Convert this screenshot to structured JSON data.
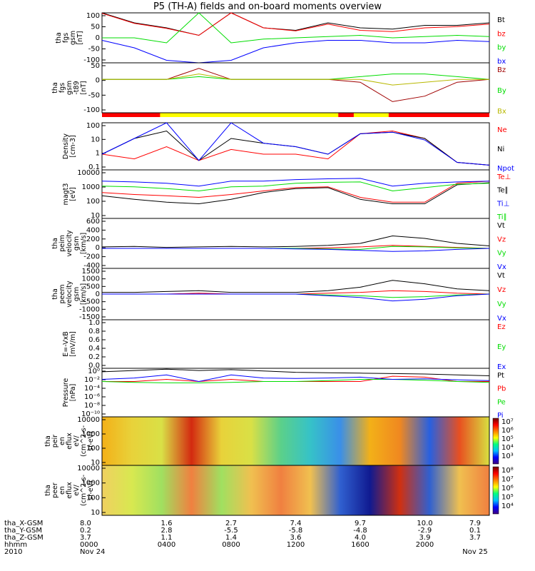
{
  "title": "P5 (TH-A) fields and on-board moments overview",
  "bar_colors": {
    "red": "#ff0000",
    "yellow": "#ffff00",
    "black": "#000000",
    "blue": "#0000ff",
    "green": "#00dd00",
    "darkred": "#a00000",
    "darkyellow": "#b8b800"
  },
  "chart_data": [
    {
      "type": "line",
      "id": "fgs",
      "ylabel": [
        "tha",
        "fgs",
        "gsm",
        "[nT]"
      ],
      "yticks": [
        "100",
        "50",
        "0",
        "-50",
        "-100"
      ],
      "ylim": [
        -100,
        100
      ],
      "series": [
        {
          "name": "Bt",
          "color": "#000000",
          "values": [
            100,
            60,
            40,
            10,
            100,
            40,
            30,
            60,
            40,
            35,
            50,
            50,
            60
          ]
        },
        {
          "name": "bz",
          "color": "#ff0000",
          "values": [
            98,
            58,
            38,
            10,
            100,
            40,
            28,
            55,
            30,
            25,
            40,
            45,
            55
          ]
        },
        {
          "name": "by",
          "color": "#00dd00",
          "values": [
            0,
            0,
            -20,
            100,
            -20,
            -5,
            0,
            5,
            10,
            0,
            5,
            10,
            5
          ]
        },
        {
          "name": "bx",
          "color": "#0000ff",
          "values": [
            -10,
            -40,
            -90,
            -100,
            -90,
            -40,
            -20,
            -10,
            -10,
            -20,
            -20,
            -10,
            -15
          ]
        }
      ]
    },
    {
      "type": "line",
      "id": "fgs-pos",
      "ylabel": [
        "tha",
        "fgs",
        "gsm",
        "-t89",
        "[nT]"
      ],
      "yticks": [
        "50",
        "0",
        "-50",
        "-100"
      ],
      "ylim": [
        -120,
        60
      ],
      "series": [
        {
          "name": "Bz",
          "color": "#a00000",
          "values": [
            0,
            0,
            0,
            40,
            0,
            0,
            0,
            0,
            -10,
            -80,
            -60,
            -10,
            0
          ]
        },
        {
          "name": "By",
          "color": "#00dd00",
          "values": [
            0,
            0,
            0,
            10,
            0,
            0,
            0,
            0,
            10,
            20,
            20,
            10,
            0
          ]
        },
        {
          "name": "Bx",
          "color": "#b8b800",
          "values": [
            0,
            0,
            0,
            20,
            0,
            0,
            0,
            0,
            0,
            -20,
            -10,
            0,
            0
          ]
        }
      ]
    },
    {
      "type": "line",
      "id": "density",
      "ylabel": [
        "Density",
        "[cm-3]"
      ],
      "yticks": [
        "100",
        "10",
        "1",
        "0.1"
      ],
      "ylim": [
        0.1,
        100
      ],
      "log": true,
      "series": [
        {
          "name": "Ne",
          "color": "#ff0000",
          "values": [
            1,
            0.5,
            3,
            0.4,
            2,
            1,
            1,
            0.5,
            20,
            30,
            10,
            0.3,
            0.2
          ]
        },
        {
          "name": "Ni",
          "color": "#000000",
          "values": [
            1,
            10,
            30,
            0.4,
            10,
            5,
            3,
            1,
            20,
            25,
            10,
            0.3,
            0.2
          ]
        },
        {
          "name": "Npot",
          "color": "#0000ff",
          "values": [
            1,
            10,
            100,
            0.4,
            100,
            5,
            3,
            1,
            20,
            25,
            8,
            0.3,
            0.2
          ]
        }
      ]
    },
    {
      "type": "line",
      "id": "temperature",
      "ylabel": [
        "magt3",
        "[eV]"
      ],
      "yticks": [
        "10000",
        "1000",
        "100",
        "10"
      ],
      "ylim": [
        10,
        10000
      ],
      "log": true,
      "series": [
        {
          "name": "Te⊥",
          "color": "#ff0000",
          "values": [
            400,
            300,
            250,
            200,
            300,
            500,
            800,
            900,
            200,
            100,
            100,
            1500,
            2000
          ]
        },
        {
          "name": "Te∥",
          "color": "#000000",
          "values": [
            250,
            150,
            100,
            80,
            150,
            400,
            700,
            800,
            150,
            80,
            80,
            1200,
            1600
          ]
        },
        {
          "name": "Ti⊥",
          "color": "#0000ff",
          "values": [
            2000,
            1800,
            1500,
            1000,
            2000,
            2000,
            2500,
            2800,
            3000,
            1000,
            1500,
            1800,
            2000
          ]
        },
        {
          "name": "Ti∥",
          "color": "#00dd00",
          "values": [
            1000,
            900,
            700,
            500,
            900,
            1000,
            1500,
            1700,
            1800,
            500,
            800,
            1300,
            1500
          ]
        }
      ]
    },
    {
      "type": "line",
      "id": "peim-velocity",
      "ylabel": [
        "tha",
        "peim",
        "velocity",
        "gsm",
        "[km/s]"
      ],
      "yticks": [
        "600",
        "400",
        "200",
        "0",
        "-200",
        "-400"
      ],
      "ylim": [
        -400,
        600
      ],
      "series": [
        {
          "name": "Vt",
          "color": "#000000",
          "values": [
            30,
            40,
            20,
            30,
            40,
            30,
            40,
            60,
            100,
            250,
            200,
            100,
            50
          ]
        },
        {
          "name": "Vz",
          "color": "#ff0000",
          "values": [
            0,
            0,
            0,
            0,
            0,
            0,
            0,
            10,
            30,
            60,
            40,
            20,
            0
          ]
        },
        {
          "name": "Vy",
          "color": "#00dd00",
          "values": [
            0,
            0,
            0,
            0,
            0,
            0,
            0,
            -10,
            -20,
            40,
            30,
            10,
            0
          ]
        },
        {
          "name": "Vx",
          "color": "#0000ff",
          "values": [
            0,
            0,
            0,
            0,
            0,
            0,
            -10,
            -20,
            -40,
            -60,
            -50,
            -20,
            0
          ]
        }
      ]
    },
    {
      "type": "line",
      "id": "peem-velocity",
      "ylabel": [
        "tha",
        "peem",
        "velocity",
        "gsm",
        "[km/s]"
      ],
      "yticks": [
        "1500",
        "1000",
        "500",
        "0",
        "-500",
        "-1000",
        "-1500"
      ],
      "ylim": [
        -1500,
        1500
      ],
      "series": [
        {
          "name": "Vt",
          "color": "#000000",
          "values": [
            100,
            100,
            150,
            200,
            100,
            100,
            100,
            200,
            400,
            800,
            600,
            300,
            200
          ]
        },
        {
          "name": "Vz",
          "color": "#ff0000",
          "values": [
            0,
            0,
            0,
            50,
            0,
            0,
            0,
            50,
            100,
            200,
            150,
            50,
            0
          ]
        },
        {
          "name": "Vy",
          "color": "#00dd00",
          "values": [
            0,
            0,
            0,
            0,
            0,
            0,
            0,
            -50,
            -100,
            -200,
            -150,
            -50,
            0
          ]
        },
        {
          "name": "Vx",
          "color": "#0000ff",
          "values": [
            0,
            0,
            0,
            0,
            0,
            0,
            0,
            -100,
            -200,
            -400,
            -300,
            -100,
            0
          ]
        }
      ]
    },
    {
      "type": "line",
      "id": "e-field",
      "ylabel": [
        "E=-VxB",
        "[mV/m]"
      ],
      "yticks": [
        "1.0",
        "0.8",
        "0.6",
        "0.4",
        "0.2",
        "0.0"
      ],
      "ylim": [
        0,
        1
      ],
      "series": [
        {
          "name": "Ez",
          "color": "#ff0000",
          "values": []
        },
        {
          "name": "Ey",
          "color": "#00dd00",
          "values": []
        },
        {
          "name": "Ex",
          "color": "#0000ff",
          "values": []
        }
      ]
    },
    {
      "type": "line",
      "id": "pressure",
      "ylabel": [
        "Pressure",
        "[nPa]"
      ],
      "yticks": [
        "10⁰",
        "10⁻²",
        "10⁻⁴",
        "10⁻⁶",
        "10⁻⁸",
        "10⁻¹⁰"
      ],
      "ylim": [
        -10,
        1
      ],
      "log": true,
      "series": [
        {
          "name": "Pt",
          "color": "#000000",
          "values": [
            0.2,
            0.5,
            0.8,
            0.5,
            0.7,
            0.4,
            0.1,
            0,
            -0.1,
            -0.2,
            -0.3,
            -0.5,
            -0.7
          ]
        },
        {
          "name": "Pb",
          "color": "#ff0000",
          "values": [
            -2,
            -2,
            -1.5,
            -2,
            -1.5,
            -2,
            -2,
            -2,
            -2,
            -0.8,
            -1,
            -2,
            -2
          ]
        },
        {
          "name": "Pe",
          "color": "#00dd00",
          "values": [
            -2,
            -2.2,
            -2.3,
            -2.3,
            -2.2,
            -2,
            -2,
            -1.8,
            -1.5,
            -1.5,
            -1.7,
            -2,
            -2.2
          ]
        },
        {
          "name": "Pi",
          "color": "#0000ff",
          "values": [
            -1.5,
            -1.2,
            -0.5,
            -2,
            -0.5,
            -1.2,
            -1.3,
            -1.2,
            -1,
            -1.5,
            -1.4,
            -1.6,
            -1.8
          ]
        }
      ]
    },
    {
      "type": "heatmap",
      "id": "peir-spectrogram",
      "ylabel": [
        "tha",
        "peir",
        "en",
        "eflux",
        "eV/",
        "(cm^2-s-",
        "sr-eV)"
      ],
      "yticks": [
        "10000",
        "1000",
        "100",
        "10"
      ],
      "colorbar_ticks": [
        "10⁷",
        "10⁶",
        "10⁵",
        "10⁴",
        "10³"
      ]
    },
    {
      "type": "heatmap",
      "id": "peer-spectrogram",
      "ylabel": [
        "tha",
        "peer",
        "en",
        "eflux",
        "eV/",
        "(cm^2-s-",
        "sr-eV)"
      ],
      "yticks": [
        "10000",
        "1000",
        "100",
        "10"
      ],
      "colorbar_ticks": [
        "10⁸",
        "10⁷",
        "10⁶",
        "10⁵",
        "10⁴"
      ]
    }
  ],
  "xaxis": {
    "row_labels": [
      "tha_X-GSM",
      "tha_Y-GSM",
      "tha_Z-GSM",
      "hhmm",
      "2010"
    ],
    "columns": [
      {
        "vals": [
          "8.0",
          "0.2",
          "3.7",
          "0000",
          "Nov 24"
        ]
      },
      {
        "vals": [
          "1.6",
          "2.8",
          "1.1",
          "0400",
          ""
        ]
      },
      {
        "vals": [
          "2.7",
          "-5.5",
          "1.4",
          "0800",
          ""
        ]
      },
      {
        "vals": [
          "7.4",
          "-5.8",
          "3.6",
          "1200",
          ""
        ]
      },
      {
        "vals": [
          "9.7",
          "-4.8",
          "4.0",
          "1600",
          ""
        ]
      },
      {
        "vals": [
          "10.0",
          "-2.9",
          "3.9",
          "2000",
          ""
        ]
      },
      {
        "vals": [
          "7.9",
          "0.1",
          "3.7",
          "",
          "Nov 25"
        ]
      }
    ]
  }
}
